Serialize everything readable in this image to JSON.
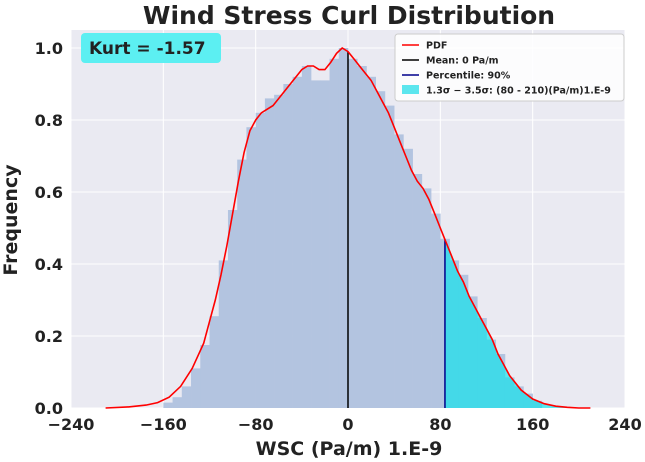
{
  "chart_data": {
    "type": "histogram",
    "title": "Wind Stress Curl Distribution",
    "xlabel": "WSC (Pa/m) 1.E-9",
    "ylabel": "Frequency",
    "xlim": [
      -240,
      240
    ],
    "ylim": [
      0,
      1.05
    ],
    "xticks": [
      -240,
      -160,
      -80,
      0,
      80,
      160,
      240
    ],
    "xtick_labels": [
      "−240",
      "−160",
      "−80",
      "0",
      "80",
      "160",
      "240"
    ],
    "yticks": [
      0.0,
      0.2,
      0.4,
      0.6,
      0.8,
      1.0
    ],
    "ytick_labels": [
      "0.0",
      "0.2",
      "0.4",
      "0.6",
      "0.8",
      "1.0"
    ],
    "grid": true,
    "annotation": "Kurt = -1.57",
    "histogram": {
      "bin_width": 8,
      "bins": [
        {
          "x0": -160,
          "x1": -152,
          "h": 0.015
        },
        {
          "x0": -152,
          "x1": -144,
          "h": 0.03
        },
        {
          "x0": -144,
          "x1": -136,
          "h": 0.06
        },
        {
          "x0": -136,
          "x1": -128,
          "h": 0.11
        },
        {
          "x0": -128,
          "x1": -120,
          "h": 0.175
        },
        {
          "x0": -120,
          "x1": -112,
          "h": 0.255
        },
        {
          "x0": -112,
          "x1": -104,
          "h": 0.41
        },
        {
          "x0": -104,
          "x1": -96,
          "h": 0.55
        },
        {
          "x0": -96,
          "x1": -88,
          "h": 0.69
        },
        {
          "x0": -88,
          "x1": -80,
          "h": 0.78
        },
        {
          "x0": -80,
          "x1": -72,
          "h": 0.82
        },
        {
          "x0": -72,
          "x1": -64,
          "h": 0.86
        },
        {
          "x0": -64,
          "x1": -56,
          "h": 0.87
        },
        {
          "x0": -56,
          "x1": -48,
          "h": 0.9
        },
        {
          "x0": -48,
          "x1": -40,
          "h": 0.92
        },
        {
          "x0": -40,
          "x1": -32,
          "h": 0.95
        },
        {
          "x0": -32,
          "x1": -24,
          "h": 0.91
        },
        {
          "x0": -24,
          "x1": -16,
          "h": 0.91
        },
        {
          "x0": -16,
          "x1": -8,
          "h": 0.97
        },
        {
          "x0": -8,
          "x1": 0,
          "h": 1.0
        },
        {
          "x0": 0,
          "x1": 8,
          "h": 0.97
        },
        {
          "x0": 8,
          "x1": 16,
          "h": 0.95
        },
        {
          "x0": 16,
          "x1": 24,
          "h": 0.92
        },
        {
          "x0": 24,
          "x1": 32,
          "h": 0.88
        },
        {
          "x0": 32,
          "x1": 40,
          "h": 0.84
        },
        {
          "x0": 40,
          "x1": 48,
          "h": 0.76
        },
        {
          "x0": 48,
          "x1": 56,
          "h": 0.72
        },
        {
          "x0": 56,
          "x1": 64,
          "h": 0.65
        },
        {
          "x0": 64,
          "x1": 72,
          "h": 0.61
        },
        {
          "x0": 72,
          "x1": 80,
          "h": 0.54
        },
        {
          "x0": 80,
          "x1": 88,
          "h": 0.47
        },
        {
          "x0": 88,
          "x1": 96,
          "h": 0.41
        },
        {
          "x0": 96,
          "x1": 104,
          "h": 0.37
        },
        {
          "x0": 104,
          "x1": 112,
          "h": 0.31
        },
        {
          "x0": 112,
          "x1": 120,
          "h": 0.25
        },
        {
          "x0": 120,
          "x1": 128,
          "h": 0.19
        },
        {
          "x0": 128,
          "x1": 136,
          "h": 0.15
        },
        {
          "x0": 136,
          "x1": 144,
          "h": 0.085
        },
        {
          "x0": 144,
          "x1": 152,
          "h": 0.06
        },
        {
          "x0": 152,
          "x1": 160,
          "h": 0.04
        },
        {
          "x0": 160,
          "x1": 168,
          "h": 0.02
        }
      ]
    },
    "pdf": {
      "x": [
        -210,
        -190,
        -175,
        -165,
        -155,
        -145,
        -135,
        -125,
        -120,
        -115,
        -110,
        -105,
        -100,
        -95,
        -90,
        -85,
        -80,
        -75,
        -70,
        -65,
        -60,
        -55,
        -50,
        -45,
        -40,
        -35,
        -30,
        -25,
        -20,
        -15,
        -10,
        -5,
        0,
        5,
        10,
        15,
        20,
        25,
        30,
        35,
        40,
        45,
        50,
        55,
        60,
        65,
        70,
        75,
        80,
        85,
        90,
        95,
        100,
        105,
        110,
        115,
        120,
        125,
        130,
        135,
        140,
        150,
        160,
        170,
        180,
        190,
        200,
        210
      ],
      "y": [
        0.0,
        0.003,
        0.008,
        0.015,
        0.03,
        0.06,
        0.11,
        0.18,
        0.24,
        0.3,
        0.37,
        0.45,
        0.54,
        0.63,
        0.71,
        0.77,
        0.8,
        0.82,
        0.83,
        0.84,
        0.86,
        0.88,
        0.9,
        0.92,
        0.94,
        0.95,
        0.95,
        0.94,
        0.94,
        0.96,
        0.985,
        1.0,
        0.99,
        0.97,
        0.95,
        0.93,
        0.91,
        0.88,
        0.85,
        0.82,
        0.78,
        0.74,
        0.7,
        0.66,
        0.63,
        0.61,
        0.58,
        0.54,
        0.5,
        0.46,
        0.42,
        0.38,
        0.35,
        0.31,
        0.28,
        0.25,
        0.22,
        0.19,
        0.15,
        0.12,
        0.09,
        0.05,
        0.025,
        0.012,
        0.005,
        0.002,
        0.0,
        0.0
      ],
      "color": "#ff0000"
    },
    "mean": {
      "x": 0,
      "color": "#000000"
    },
    "percentile": {
      "x": 84,
      "color": "#00008b"
    },
    "shaded_region": {
      "x0": 84,
      "x1": 210,
      "color": "#00e5ee"
    },
    "legend": {
      "position": "top-right",
      "entries": [
        {
          "label": "PDF",
          "type": "line",
          "color": "#ff0000"
        },
        {
          "label": "Mean: 0 Pa/m",
          "type": "line",
          "color": "#000000"
        },
        {
          "label": "Percentile: 90%",
          "type": "line",
          "color": "#00008b"
        },
        {
          "label": "1.3σ − 3.5σ: (80 - 210)(Pa/m)1.E-9",
          "type": "patch",
          "color": "#5ce6ee"
        }
      ]
    },
    "colors": {
      "plot_bg": "#eaeaf2",
      "hist_fill": "#b3c4e0",
      "grid": "#ffffff",
      "annotation_bg": "#5ceff2"
    }
  }
}
